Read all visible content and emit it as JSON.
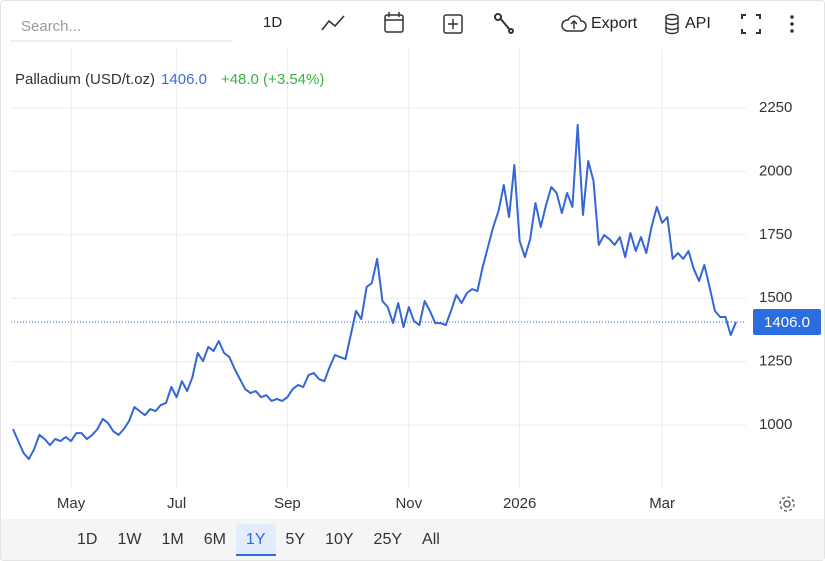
{
  "toolbar": {
    "search_placeholder": "Search...",
    "interval": "1D",
    "export": "Export",
    "api": "API"
  },
  "chart_data": {
    "type": "line",
    "title": "Palladium (USD/t.oz)",
    "last_price": "1406.0",
    "change": "+48.0 (+3.54%)",
    "categories": [
      null,
      null,
      null,
      null,
      null,
      null,
      null,
      null,
      null,
      null,
      null,
      "May",
      null,
      null,
      null,
      null,
      null,
      null,
      null,
      null,
      null,
      null,
      null,
      null,
      null,
      null,
      null,
      null,
      null,
      null,
      null,
      "Jul",
      null,
      null,
      null,
      null,
      null,
      null,
      null,
      null,
      null,
      null,
      null,
      null,
      null,
      null,
      null,
      null,
      null,
      null,
      null,
      null,
      "Sep",
      null,
      null,
      null,
      null,
      null,
      null,
      null,
      null,
      null,
      null,
      null,
      null,
      null,
      null,
      null,
      null,
      null,
      null,
      null,
      null,
      null,
      null,
      "Nov",
      null,
      null,
      null,
      null,
      null,
      null,
      null,
      null,
      null,
      null,
      null,
      null,
      null,
      null,
      null,
      null,
      null,
      null,
      null,
      null,
      "2026",
      null,
      null,
      null,
      null,
      null,
      null,
      null,
      null,
      null,
      null,
      null,
      null,
      null,
      null,
      null,
      null,
      null,
      null,
      null,
      null,
      null,
      null,
      null,
      null,
      null,
      null,
      "Mar",
      null,
      null,
      null,
      null,
      null,
      null,
      null,
      null,
      null,
      null,
      null,
      null,
      null,
      null
    ],
    "series": [
      {
        "name": "Palladium (USD/t.oz)",
        "color": "#3467d6",
        "values": [
          984,
          937,
          890,
          866,
          905,
          961,
          945,
          921,
          945,
          937,
          953,
          937,
          968,
          968,
          945,
          961,
          984,
          1024,
          1008,
          976,
          961,
          984,
          1016,
          1071,
          1055,
          1039,
          1063,
          1055,
          1079,
          1087,
          1150,
          1110,
          1173,
          1134,
          1189,
          1284,
          1252,
          1308,
          1292,
          1331,
          1284,
          1268,
          1221,
          1181,
          1142,
          1126,
          1134,
          1110,
          1118,
          1095,
          1103,
          1095,
          1110,
          1142,
          1158,
          1150,
          1197,
          1205,
          1181,
          1173,
          1229,
          1276,
          1268,
          1260,
          1355,
          1450,
          1418,
          1544,
          1560,
          1655,
          1489,
          1465,
          1402,
          1481,
          1386,
          1465,
          1410,
          1394,
          1489,
          1450,
          1402,
          1402,
          1394,
          1450,
          1513,
          1481,
          1520,
          1536,
          1528,
          1623,
          1702,
          1781,
          1844,
          1946,
          1820,
          2025,
          1726,
          1662,
          1733,
          1875,
          1781,
          1867,
          1938,
          1915,
          1836,
          1915,
          1860,
          2183,
          1828,
          2041,
          1962,
          1710,
          1749,
          1733,
          1710,
          1741,
          1662,
          1757,
          1686,
          1741,
          1678,
          1781,
          1860,
          1797,
          1820,
          1655,
          1678,
          1655,
          1686,
          1615,
          1568,
          1631,
          1544,
          1450,
          1426,
          1426,
          1355,
          1406
        ]
      }
    ],
    "ylim": [
      748,
      2435
    ],
    "yticks": [
      1000,
      1250,
      1500,
      1750,
      2000,
      2250
    ],
    "grid": true,
    "tag_color": "#2a6de0",
    "ranges": [
      "1D",
      "1W",
      "1M",
      "6M",
      "1Y",
      "5Y",
      "10Y",
      "25Y",
      "All"
    ],
    "selected_range": "1Y"
  }
}
